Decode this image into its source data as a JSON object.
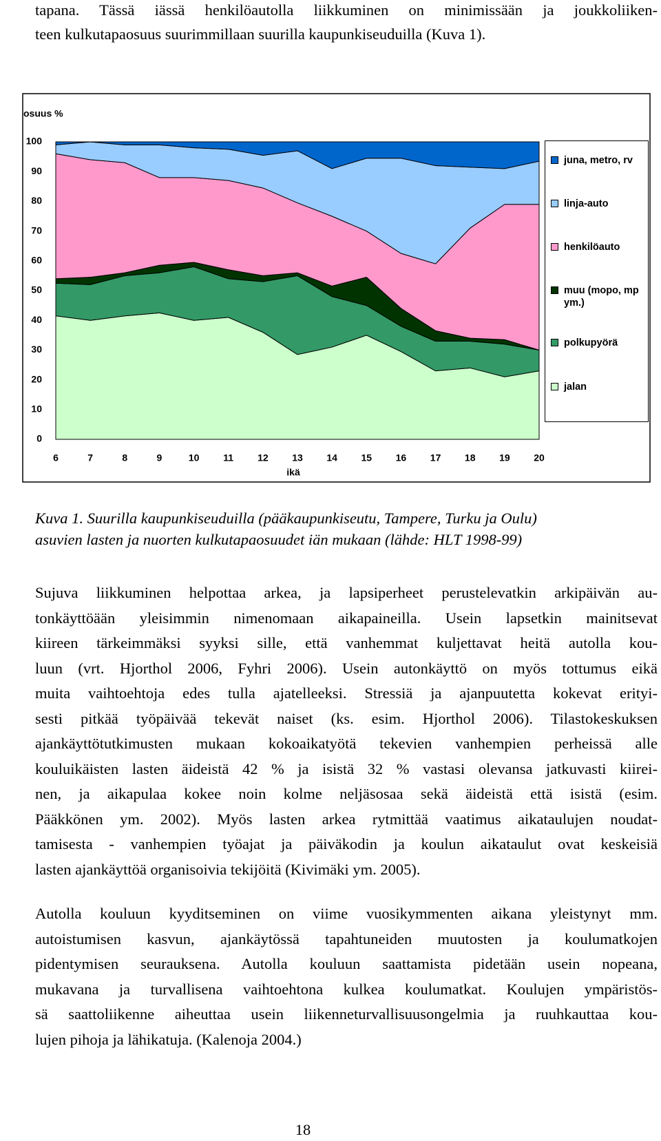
{
  "intro_lines": [
    "tapana. Tässä iässä henkilöautolla liikkuminen on minimissään ja joukkoliiken-",
    "teen kulkutapaosuus suurimmillaan suurilla kaupunkiseuduilla (Kuva 1)."
  ],
  "chart_data": {
    "type": "stacked_area",
    "ylabel": "osuus %",
    "xlabel": "ikä",
    "x": [
      6,
      7,
      8,
      9,
      10,
      11,
      12,
      13,
      14,
      15,
      16,
      17,
      18,
      19,
      20
    ],
    "xlim": [
      6,
      20
    ],
    "xticks": [
      6,
      7,
      8,
      9,
      10,
      11,
      12,
      13,
      14,
      15,
      16,
      17,
      18,
      19,
      20
    ],
    "ylim": [
      0,
      100
    ],
    "yticks": [
      0,
      10,
      20,
      30,
      40,
      50,
      60,
      70,
      80,
      90,
      100
    ],
    "grid": false,
    "legend": "right",
    "series": [
      {
        "name": "jalan",
        "color": "#ccffcc",
        "values": [
          41.5,
          40,
          41.5,
          42.5,
          40,
          41,
          36,
          28.5,
          31,
          35,
          29.5,
          23,
          24,
          21,
          23
        ]
      },
      {
        "name": "polkupyörä",
        "color": "#339966",
        "values": [
          11,
          12,
          13.5,
          13.5,
          18,
          13,
          17,
          26.5,
          17,
          10,
          8.5,
          10,
          9,
          11,
          7
        ]
      },
      {
        "name": "muu (mopo, mp ym.)",
        "color": "#003300",
        "values": [
          1.5,
          2.5,
          1,
          2.5,
          1.5,
          3,
          2,
          1,
          3.5,
          9.5,
          6,
          3.5,
          1,
          1.5,
          0
        ]
      },
      {
        "name": "henkilöauto",
        "color": "#ff99cc",
        "values": [
          42,
          39.5,
          37,
          29.5,
          28.5,
          30,
          29.5,
          23.5,
          23.5,
          15.5,
          18.5,
          22.5,
          37,
          45.5,
          49
        ]
      },
      {
        "name": "linja-auto",
        "color": "#99ccff",
        "values": [
          3,
          6,
          6,
          11,
          10,
          10.5,
          11,
          17.5,
          16,
          24.5,
          32,
          33,
          20.5,
          12,
          14.5
        ]
      },
      {
        "name": "juna, metro, rv",
        "color": "#0066cc",
        "values": [
          1,
          0,
          1,
          1,
          2,
          2.5,
          4.5,
          3,
          9,
          5.5,
          5.5,
          8,
          8.5,
          9,
          6.5
        ]
      }
    ]
  },
  "caption_lines": [
    "Kuva 1. Suurilla kaupunkiseuduilla (pääkaupunkiseutu, Tampere, Turku ja Oulu)",
    "asuvien lasten ja nuorten kulkutapaosuudet iän mukaan (lähde: HLT 1998-99)"
  ],
  "paragraphs": [
    [
      "Sujuva liikkuminen helpottaa arkea, ja lapsiperheet perustelevatkin arkipäivän au-",
      "tonkäyttöään yleisimmin nimenomaan aikapaineilla. Usein lapsetkin mainitsevat",
      "kiireen tärkeimmäksi syyksi sille, että vanhemmat kuljettavat heitä autolla kou-",
      "luun (vrt. Hjorthol 2006, Fyhri 2006). Usein autonkäyttö on myös tottumus eikä",
      "muita vaihtoehtoja edes tulla ajatelleeksi. Stressiä ja ajanpuutetta kokevat erityi-",
      "sesti pitkää työpäivää tekevät naiset (ks. esim. Hjorthol 2006). Tilastokeskuksen",
      "ajankäyttötutkimusten mukaan kokoaikatyötä tekevien vanhempien perheissä alle",
      "kouluikäisten lasten äideistä 42 % ja isistä 32 % vastasi olevansa jatkuvasti kiirei-",
      "nen, ja aikapulaa kokee noin kolme neljäsosaa sekä äideistä että isistä (esim.",
      "Pääkkönen ym. 2002). Myös lasten arkea rytmittää vaatimus aikataulujen noudat-",
      "tamisesta - vanhempien työajat ja päiväkodin ja koulun aikataulut ovat keskeisiä",
      "lasten ajankäyttöä organisoivia tekijöitä  (Kivimäki ym. 2005)."
    ],
    [
      "Autolla kouluun kyyditseminen on viime vuosikymmenten aikana yleistynyt mm.",
      "autoistumisen kasvun, ajankäytössä tapahtuneiden muutosten ja koulumatkojen",
      "pidentymisen seurauksena. Autolla kouluun saattamista pidetään usein nopeana,",
      "mukavana ja turvallisena vaihtoehtona kulkea koulumatkat. Koulujen ympäristös-",
      "sä saattoliikenne aiheuttaa usein liikenneturvallisuusongelmia ja ruuhkauttaa kou-",
      "lujen pihoja ja lähikatuja. (Kalenoja 2004.)"
    ]
  ],
  "page_number": "18"
}
